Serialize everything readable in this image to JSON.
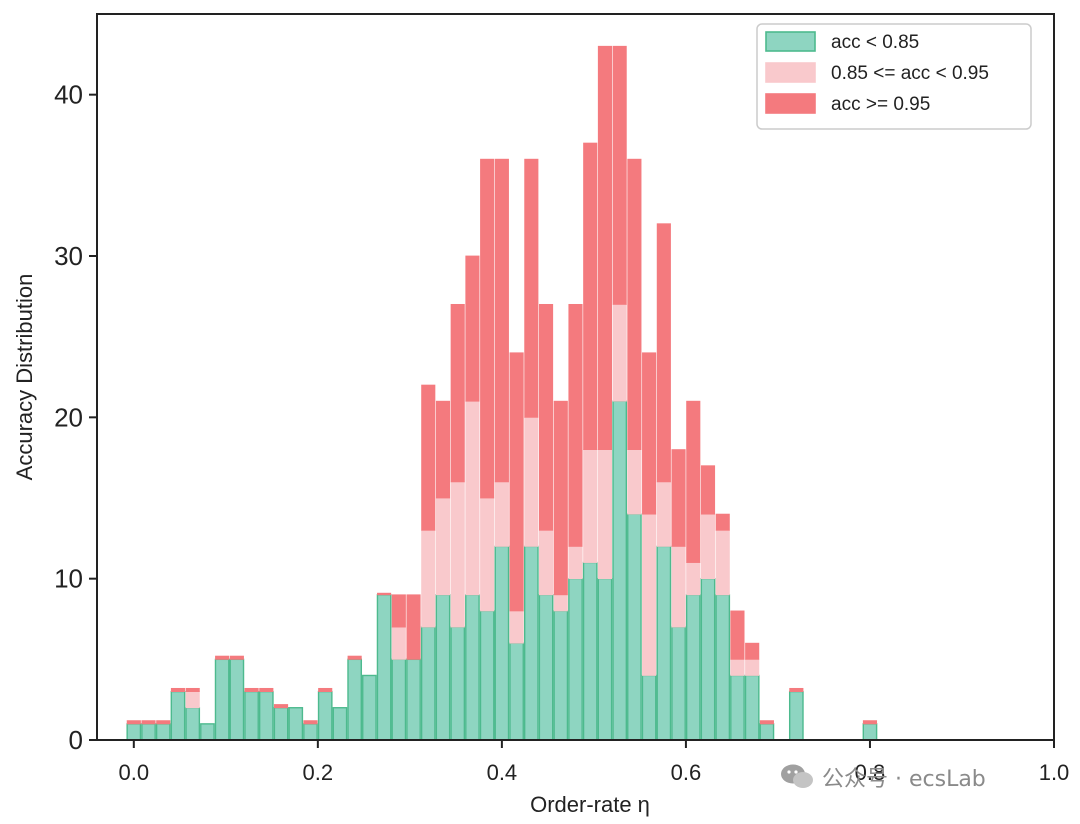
{
  "chart_data": {
    "type": "bar",
    "stacked": true,
    "xlabel": "Order-rate η",
    "ylabel": "Accuracy Distribution",
    "xlim": [
      -0.04,
      1.0
    ],
    "ylim": [
      0,
      45
    ],
    "x_ticks": [
      0.0,
      0.2,
      0.4,
      0.6,
      0.8,
      1.0
    ],
    "x_tick_labels": [
      "0.0",
      "0.2",
      "0.4",
      "0.6",
      "0.8",
      "1.0"
    ],
    "y_ticks": [
      0,
      10,
      20,
      30,
      40
    ],
    "y_tick_labels": [
      "0",
      "10",
      "20",
      "30",
      "40"
    ],
    "bin_width": 0.016,
    "x": [
      0.0,
      0.016,
      0.032,
      0.048,
      0.064,
      0.08,
      0.096,
      0.112,
      0.128,
      0.144,
      0.16,
      0.176,
      0.192,
      0.208,
      0.224,
      0.24,
      0.256,
      0.272,
      0.288,
      0.304,
      0.32,
      0.336,
      0.352,
      0.368,
      0.384,
      0.4,
      0.416,
      0.432,
      0.448,
      0.464,
      0.48,
      0.496,
      0.512,
      0.528,
      0.544,
      0.56,
      0.576,
      0.592,
      0.608,
      0.624,
      0.64,
      0.656,
      0.672,
      0.688,
      0.704,
      0.72,
      0.736,
      0.752,
      0.768,
      0.784,
      0.8,
      0.816,
      0.832
    ],
    "series": [
      {
        "name": "acc < 0.85",
        "values": [
          1,
          1,
          1,
          3,
          2,
          1,
          5,
          5,
          3,
          3,
          2,
          2,
          1,
          3,
          2,
          5,
          4,
          9,
          5,
          5,
          7,
          9,
          7,
          9,
          8,
          12,
          6,
          12,
          9,
          8,
          10,
          11,
          10,
          21,
          14,
          4,
          12,
          7,
          9,
          10,
          9,
          4,
          4,
          1,
          0,
          3,
          0,
          0,
          0,
          0,
          1,
          0,
          0
        ]
      },
      {
        "name": "0.85 <= acc < 0.95",
        "values": [
          0,
          0,
          0,
          0,
          1,
          0,
          0,
          0,
          0,
          0,
          0,
          0,
          0,
          0,
          0,
          0,
          0,
          0,
          2,
          0,
          6,
          6,
          9,
          12,
          7,
          4,
          2,
          8,
          4,
          1,
          2,
          7,
          8,
          6,
          4,
          10,
          4,
          5,
          2,
          4,
          4,
          1,
          1,
          0,
          0,
          0,
          0,
          0,
          0,
          0,
          0,
          0,
          0
        ]
      },
      {
        "name": "acc >= 0.95",
        "values": [
          0.2,
          0.2,
          0.2,
          0.2,
          0.2,
          0,
          0.2,
          0.2,
          0.2,
          0.2,
          0.2,
          0,
          0.2,
          0.2,
          0,
          0.2,
          0,
          0.1,
          2,
          4,
          9,
          6,
          11,
          9,
          21,
          20,
          16,
          16,
          14,
          12,
          15,
          19,
          25,
          16,
          18,
          10,
          16,
          6,
          10,
          3,
          1,
          3,
          1,
          0.2,
          0,
          0.2,
          0,
          0,
          0,
          0,
          0.2,
          0,
          0
        ]
      }
    ],
    "colors": {
      "acc < 0.85": "#8ed5c1",
      "acc < 0.85 edge": "#4dba8e",
      "0.85 <= acc < 0.95": "#f9c9cc",
      "acc >= 0.95": "#f47a7e"
    },
    "legend": {
      "position": "top-right",
      "entries": [
        "acc < 0.85",
        "0.85 <= acc < 0.95",
        "acc >= 0.95"
      ]
    }
  },
  "watermark": {
    "text": "公众号 · ecsLab",
    "icon": "wechat-icon"
  }
}
